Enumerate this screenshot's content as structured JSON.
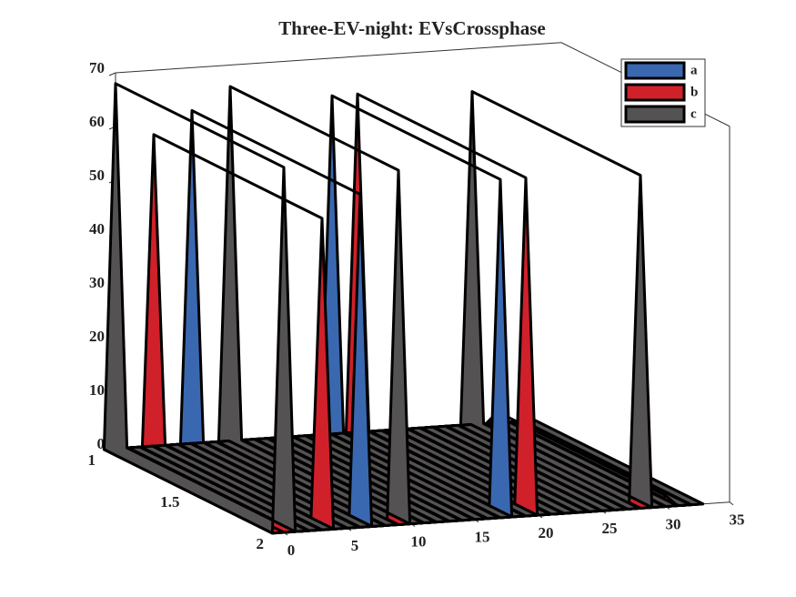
{
  "chart_data": {
    "type": "ribbon3d",
    "title": "Three-EV-night: EVsCrossphase",
    "x": [
      0,
      1,
      2,
      3,
      4,
      5,
      6,
      7,
      8,
      9,
      10,
      11,
      12,
      13,
      14,
      15,
      16,
      17,
      18,
      19,
      20,
      21,
      22,
      23,
      24,
      25,
      26,
      27,
      28,
      29,
      30,
      31,
      32
    ],
    "series": [
      {
        "name": "a",
        "color": "#3a68b0",
        "values": [
          0,
          0,
          0,
          0,
          0,
          0,
          62,
          0,
          0,
          0,
          0,
          0,
          0,
          0,
          0,
          0,
          0,
          63,
          0,
          0,
          0,
          0,
          0,
          0,
          0,
          0,
          0,
          0,
          0,
          0,
          0,
          0,
          0
        ]
      },
      {
        "name": "b",
        "color": "#d0202a",
        "values": [
          0,
          0,
          0,
          58,
          0,
          0,
          0,
          0,
          0,
          0,
          0,
          0,
          0,
          0,
          0,
          0,
          0,
          0,
          0,
          63,
          0,
          0,
          0,
          0,
          0,
          0,
          0,
          0,
          0,
          0,
          2,
          0,
          0
        ]
      },
      {
        "name": "c",
        "color": "#555253",
        "values": [
          68,
          0,
          0,
          0,
          0,
          0,
          0,
          0,
          0,
          66,
          0,
          0,
          0,
          0,
          0,
          0,
          0,
          0,
          0,
          0,
          0,
          0,
          0,
          0,
          0,
          0,
          0,
          0,
          62,
          0,
          0,
          0,
          0
        ]
      }
    ],
    "xlim": [
      0,
      35
    ],
    "xticks": [
      0,
      5,
      10,
      15,
      20,
      25,
      30,
      35
    ],
    "ylim": [
      1,
      2
    ],
    "yticks": [
      1,
      1.5,
      2
    ],
    "zlim": [
      0,
      70
    ],
    "zticks": [
      0,
      10,
      20,
      30,
      40,
      50,
      60,
      70
    ],
    "legend": "northeast"
  }
}
